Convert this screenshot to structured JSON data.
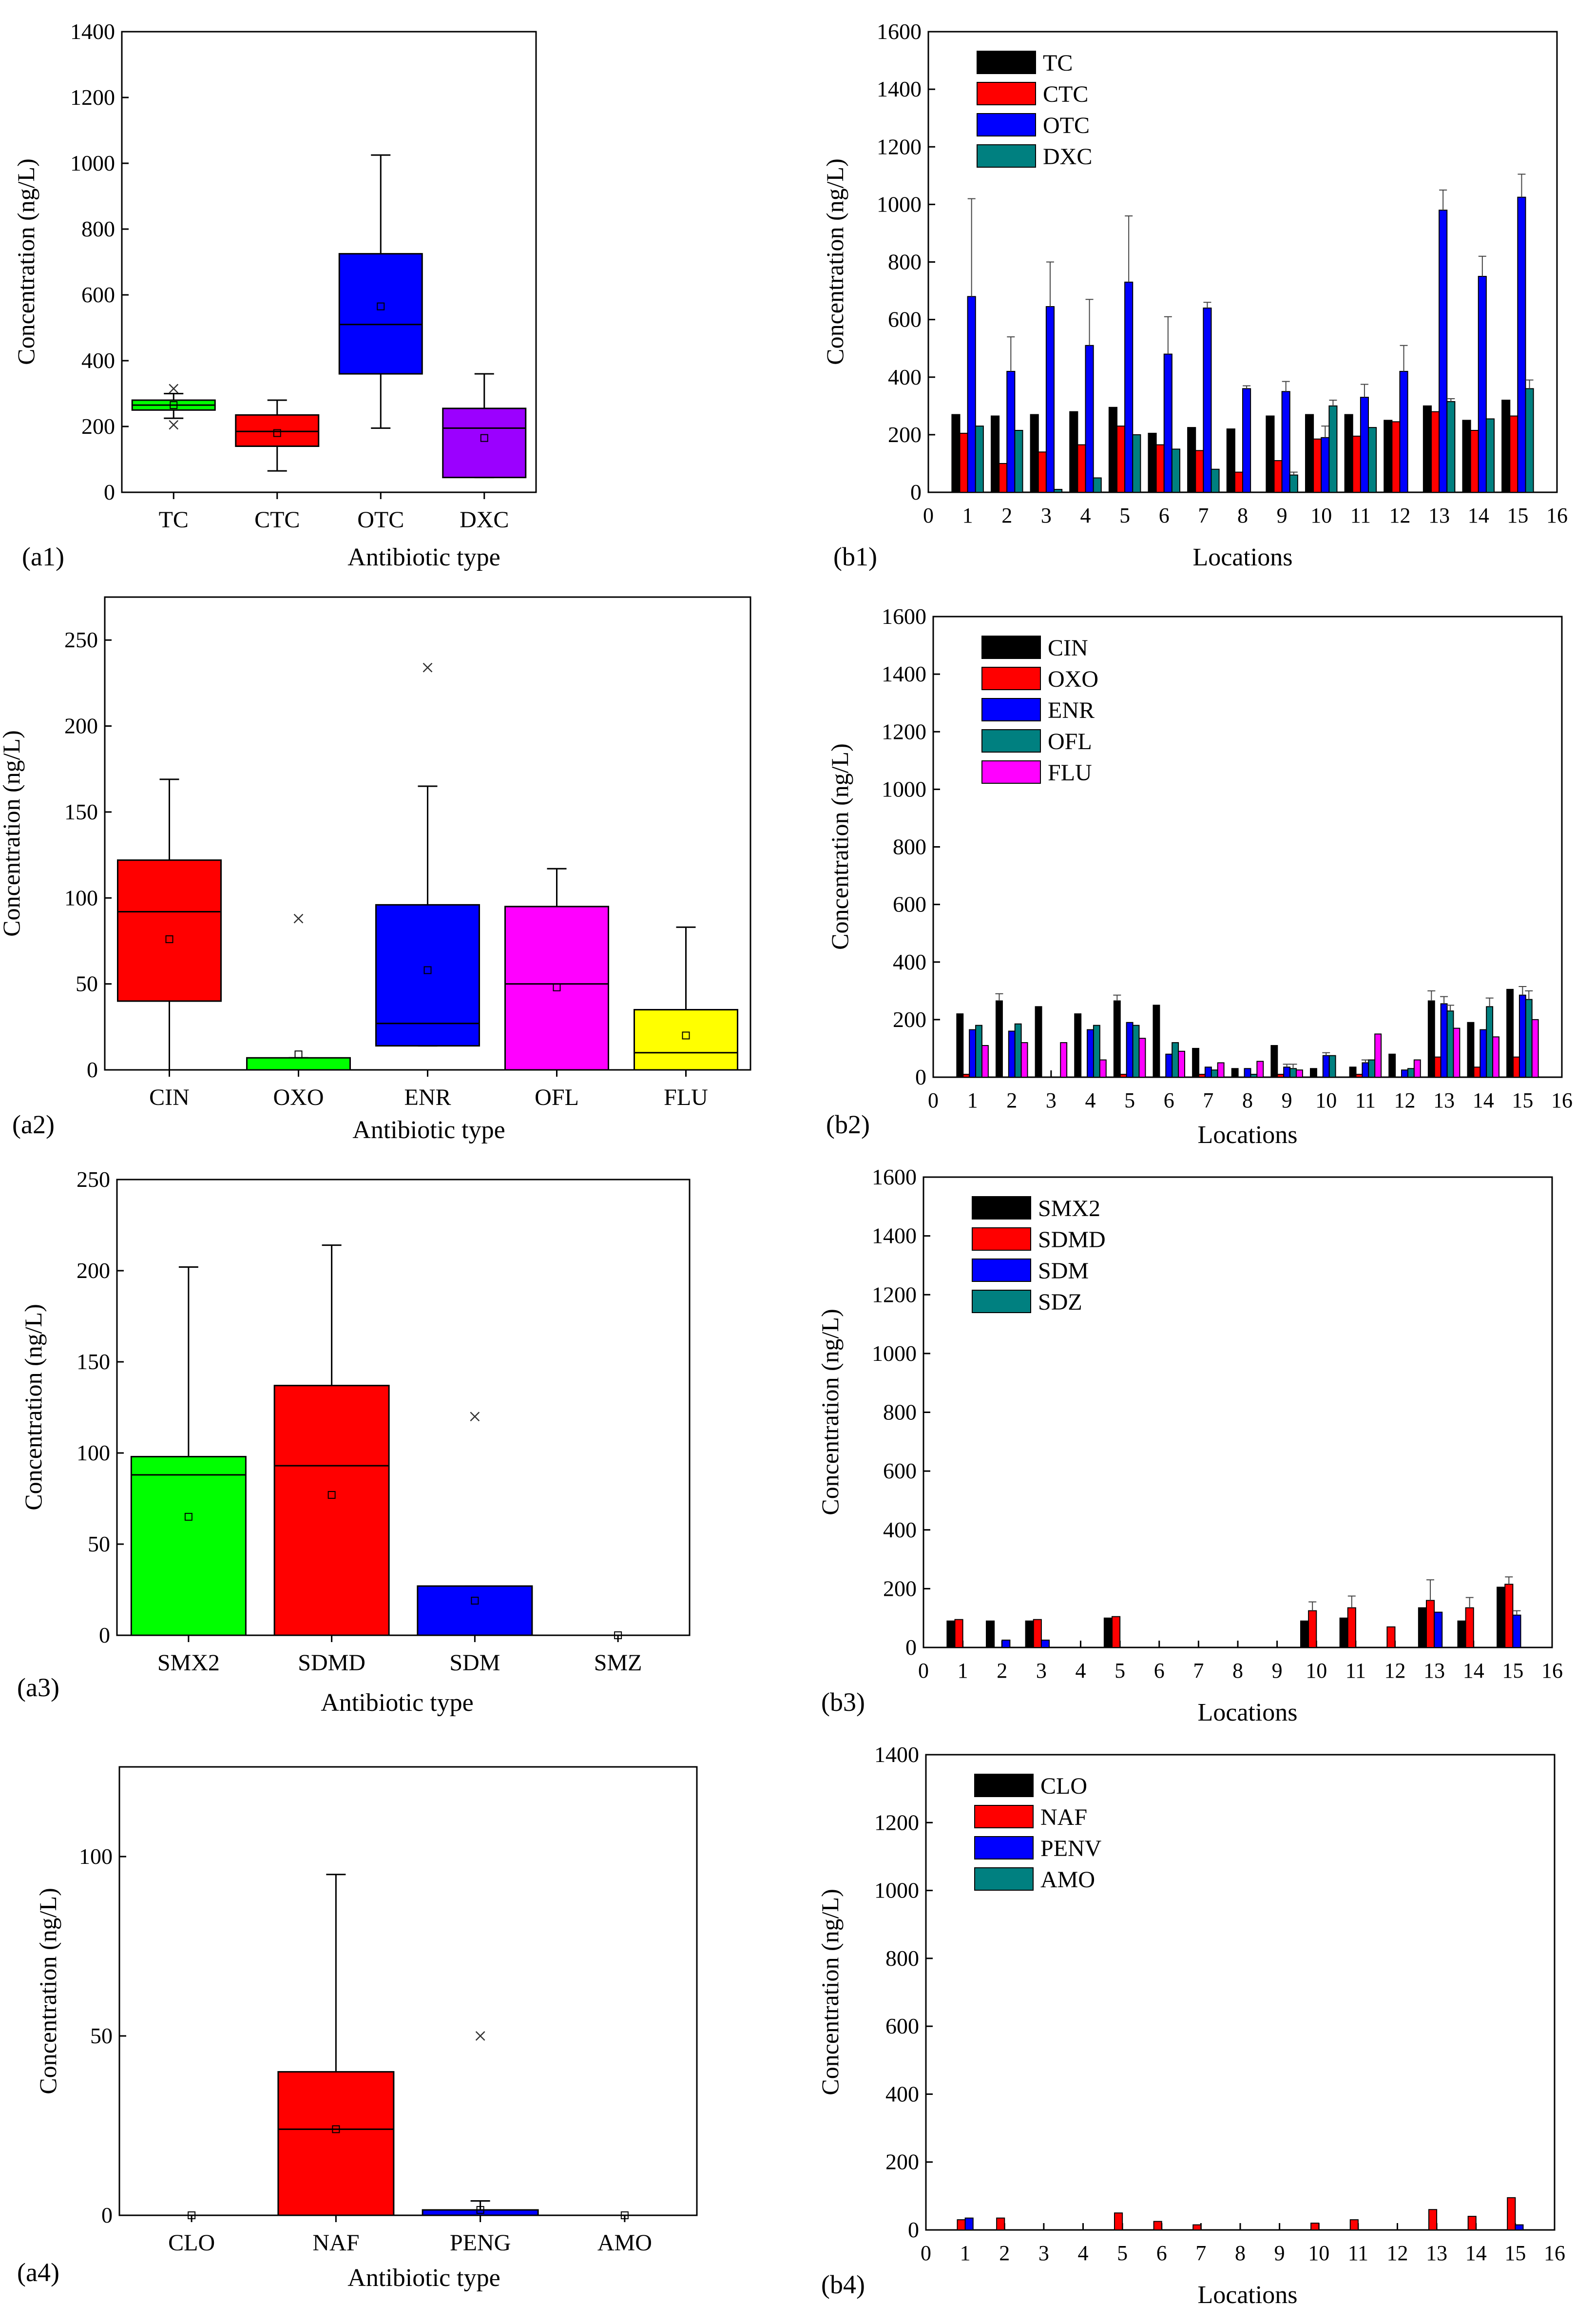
{
  "colors": {
    "green": "#00ff00",
    "red": "#ff0000",
    "blue": "#0000ff",
    "magenta": "#ff00ff",
    "yellow": "#ffff00",
    "purple": "#9b00ff",
    "teal": "#008080",
    "black": "#000000",
    "grey": "#999999"
  },
  "chart_data": [
    {
      "id": "a1",
      "type": "box",
      "panel_label": "(a1)",
      "xlabel": "Antibiotic type",
      "ylabel": "Concentration (ng/L)",
      "ylim": [
        0,
        1400
      ],
      "yticks": [
        0,
        200,
        400,
        600,
        800,
        1000,
        1200,
        1400
      ],
      "categories": [
        "TC",
        "CTC",
        "OTC",
        "DXC"
      ],
      "colors": [
        "green",
        "red",
        "blue",
        "purple"
      ],
      "boxes": [
        {
          "q1": 250,
          "median": 265,
          "q3": 280,
          "whisker_low": 225,
          "whisker_high": 300,
          "mean": 265,
          "outliers": [
            205,
            315
          ]
        },
        {
          "q1": 140,
          "median": 185,
          "q3": 235,
          "whisker_low": 65,
          "whisker_high": 280,
          "mean": 180,
          "outliers": []
        },
        {
          "q1": 360,
          "median": 510,
          "q3": 725,
          "whisker_low": 195,
          "whisker_high": 1025,
          "mean": 565,
          "outliers": []
        },
        {
          "q1": 45,
          "median": 195,
          "q3": 255,
          "whisker_low": 45,
          "whisker_high": 360,
          "mean": 165,
          "outliers": []
        }
      ]
    },
    {
      "id": "b1",
      "type": "bar",
      "panel_label": "(b1)",
      "xlabel": "Locations",
      "ylabel": "Concentration (ng/L)",
      "ylim": [
        0,
        1600
      ],
      "yticks": [
        0,
        200,
        400,
        600,
        800,
        1000,
        1200,
        1400,
        1600
      ],
      "xlim": [
        0,
        16
      ],
      "xticks": [
        0,
        1,
        2,
        3,
        4,
        5,
        6,
        7,
        8,
        9,
        10,
        11,
        12,
        13,
        14,
        15,
        16
      ],
      "categories": [
        1,
        2,
        3,
        4,
        5,
        6,
        7,
        8,
        9,
        10,
        11,
        12,
        13,
        14,
        15
      ],
      "series": [
        {
          "name": "TC",
          "color": "black",
          "values": [
            270,
            265,
            270,
            280,
            295,
            205,
            225,
            220,
            265,
            270,
            270,
            250,
            300,
            250,
            320
          ]
        },
        {
          "name": "CTC",
          "color": "red",
          "values": [
            205,
            100,
            140,
            165,
            230,
            165,
            145,
            70,
            110,
            185,
            195,
            245,
            280,
            215,
            265
          ]
        },
        {
          "name": "OTC",
          "color": "blue",
          "values": [
            680,
            420,
            645,
            510,
            730,
            480,
            640,
            360,
            350,
            190,
            330,
            420,
            980,
            750,
            1025
          ]
        },
        {
          "name": "DXC",
          "color": "teal",
          "values": [
            230,
            215,
            10,
            50,
            200,
            150,
            80,
            0,
            60,
            300,
            225,
            0,
            315,
            255,
            360
          ]
        }
      ],
      "errors": [
        [
          0,
          0,
          340,
          0
        ],
        [
          0,
          0,
          120,
          0
        ],
        [
          0,
          0,
          155,
          0
        ],
        [
          0,
          0,
          160,
          0
        ],
        [
          0,
          0,
          230,
          0
        ],
        [
          0,
          0,
          130,
          0
        ],
        [
          0,
          0,
          20,
          0
        ],
        [
          0,
          0,
          10,
          0
        ],
        [
          0,
          0,
          35,
          10
        ],
        [
          0,
          0,
          40,
          20
        ],
        [
          0,
          0,
          45,
          0
        ],
        [
          0,
          0,
          90,
          0
        ],
        [
          0,
          0,
          70,
          10
        ],
        [
          0,
          0,
          70,
          0
        ],
        [
          0,
          0,
          80,
          30
        ]
      ]
    },
    {
      "id": "a2",
      "type": "box",
      "panel_label": "(a2)",
      "xlabel": "Antibiotic type",
      "ylabel": "Concentration (ng/L)",
      "ylim": [
        0,
        275
      ],
      "yticks": [
        0,
        50,
        100,
        150,
        200,
        250
      ],
      "categories": [
        "CIN",
        "OXO",
        "ENR",
        "OFL",
        "FLU"
      ],
      "colors": [
        "red",
        "green",
        "blue",
        "magenta",
        "yellow"
      ],
      "boxes": [
        {
          "q1": 40,
          "median": 92,
          "q3": 122,
          "whisker_low": 0,
          "whisker_high": 169,
          "mean": 76,
          "outliers": []
        },
        {
          "q1": 0,
          "median": 0,
          "q3": 7,
          "whisker_low": 0,
          "whisker_high": 7,
          "mean": 9,
          "outliers": [
            88
          ]
        },
        {
          "q1": 14,
          "median": 27,
          "q3": 96,
          "whisker_low": 14,
          "whisker_high": 165,
          "mean": 58,
          "outliers": [
            234
          ]
        },
        {
          "q1": 0,
          "median": 50,
          "q3": 95,
          "whisker_low": 0,
          "whisker_high": 117,
          "mean": 48,
          "outliers": []
        },
        {
          "q1": 0,
          "median": 10,
          "q3": 35,
          "whisker_low": 0,
          "whisker_high": 83,
          "mean": 20,
          "outliers": []
        }
      ]
    },
    {
      "id": "b2",
      "type": "bar",
      "panel_label": "(b2)",
      "xlabel": "Locations",
      "ylabel": "Concentration (ng/L)",
      "ylim": [
        0,
        1600
      ],
      "yticks": [
        0,
        200,
        400,
        600,
        800,
        1000,
        1200,
        1400,
        1600
      ],
      "xlim": [
        0,
        16
      ],
      "xticks": [
        0,
        1,
        2,
        3,
        4,
        5,
        6,
        7,
        8,
        9,
        10,
        11,
        12,
        13,
        14,
        15,
        16
      ],
      "categories": [
        1,
        2,
        3,
        4,
        5,
        6,
        7,
        8,
        9,
        10,
        11,
        12,
        13,
        14,
        15
      ],
      "series": [
        {
          "name": "CIN",
          "color": "black",
          "values": [
            220,
            265,
            245,
            220,
            265,
            250,
            100,
            30,
            110,
            30,
            35,
            80,
            265,
            190,
            305
          ]
        },
        {
          "name": "OXO",
          "color": "red",
          "values": [
            10,
            0,
            0,
            0,
            10,
            0,
            10,
            0,
            10,
            0,
            10,
            0,
            70,
            35,
            70
          ]
        },
        {
          "name": "ENR",
          "color": "blue",
          "values": [
            165,
            160,
            0,
            165,
            190,
            80,
            35,
            30,
            35,
            75,
            50,
            25,
            255,
            165,
            285
          ]
        },
        {
          "name": "OFL",
          "color": "teal",
          "values": [
            180,
            185,
            0,
            180,
            180,
            120,
            25,
            10,
            30,
            75,
            60,
            30,
            230,
            245,
            270
          ]
        },
        {
          "name": "FLU",
          "color": "magenta",
          "values": [
            110,
            120,
            120,
            60,
            135,
            90,
            50,
            55,
            25,
            0,
            150,
            60,
            170,
            140,
            200
          ]
        }
      ],
      "errors": [
        [
          0,
          0,
          0,
          0,
          0
        ],
        [
          25,
          0,
          0,
          0,
          0
        ],
        [
          0,
          0,
          0,
          0,
          0
        ],
        [
          0,
          0,
          0,
          0,
          0
        ],
        [
          20,
          0,
          0,
          0,
          0
        ],
        [
          0,
          0,
          0,
          0,
          0
        ],
        [
          0,
          0,
          0,
          0,
          0
        ],
        [
          0,
          0,
          0,
          0,
          0
        ],
        [
          0,
          0,
          10,
          15,
          0
        ],
        [
          0,
          0,
          10,
          0,
          0
        ],
        [
          0,
          0,
          10,
          0,
          0
        ],
        [
          0,
          0,
          0,
          0,
          0
        ],
        [
          35,
          0,
          25,
          20,
          0
        ],
        [
          0,
          0,
          0,
          30,
          0
        ],
        [
          0,
          0,
          30,
          30,
          0
        ]
      ]
    },
    {
      "id": "a3",
      "type": "box",
      "panel_label": "(a3)",
      "xlabel": "Antibiotic type",
      "ylabel": "Concentration (ng/L)",
      "ylim": [
        0,
        250
      ],
      "yticks": [
        0,
        50,
        100,
        150,
        200,
        250
      ],
      "categories": [
        "SMX2",
        "SDMD",
        "SDM",
        "SMZ"
      ],
      "colors": [
        "green",
        "red",
        "blue",
        "grey"
      ],
      "boxes": [
        {
          "q1": 0,
          "median": 88,
          "q3": 98,
          "whisker_low": 0,
          "whisker_high": 202,
          "mean": 65,
          "outliers": []
        },
        {
          "q1": 0,
          "median": 93,
          "q3": 137,
          "whisker_low": 0,
          "whisker_high": 214,
          "mean": 77,
          "outliers": []
        },
        {
          "q1": 0,
          "median": 0,
          "q3": 27,
          "whisker_low": 0,
          "whisker_high": 27,
          "mean": 19,
          "outliers": [
            120
          ]
        },
        {
          "q1": 0,
          "median": 0,
          "q3": 0,
          "whisker_low": 0,
          "whisker_high": 0,
          "mean": 0,
          "outliers": []
        }
      ]
    },
    {
      "id": "b3",
      "type": "bar",
      "panel_label": "(b3)",
      "xlabel": "Locations",
      "ylabel": "Concentration (ng/L)",
      "ylim": [
        0,
        1600
      ],
      "yticks": [
        0,
        200,
        400,
        600,
        800,
        1000,
        1200,
        1400,
        1600
      ],
      "xlim": [
        0,
        16
      ],
      "xticks": [
        0,
        1,
        2,
        3,
        4,
        5,
        6,
        7,
        8,
        9,
        10,
        11,
        12,
        13,
        14,
        15,
        16
      ],
      "categories": [
        1,
        2,
        3,
        4,
        5,
        6,
        7,
        8,
        9,
        10,
        11,
        12,
        13,
        14,
        15
      ],
      "series": [
        {
          "name": "SMX2",
          "color": "black",
          "values": [
            90,
            90,
            90,
            0,
            100,
            0,
            0,
            0,
            0,
            90,
            100,
            0,
            135,
            90,
            205
          ]
        },
        {
          "name": "SDMD",
          "color": "red",
          "values": [
            95,
            0,
            95,
            0,
            105,
            0,
            0,
            0,
            0,
            125,
            135,
            70,
            160,
            135,
            215
          ]
        },
        {
          "name": "SDM",
          "color": "blue",
          "values": [
            0,
            25,
            25,
            0,
            0,
            0,
            0,
            0,
            0,
            0,
            0,
            0,
            120,
            0,
            110
          ]
        },
        {
          "name": "SDZ",
          "color": "teal",
          "values": [
            0,
            0,
            0,
            0,
            0,
            0,
            0,
            0,
            0,
            0,
            0,
            0,
            0,
            0,
            0
          ]
        }
      ],
      "errors": [
        [
          0,
          0,
          0,
          0
        ],
        [
          0,
          0,
          0,
          0
        ],
        [
          0,
          0,
          0,
          0
        ],
        [
          0,
          0,
          0,
          0
        ],
        [
          0,
          0,
          0,
          0
        ],
        [
          0,
          0,
          0,
          0
        ],
        [
          0,
          0,
          0,
          0
        ],
        [
          0,
          0,
          0,
          0
        ],
        [
          0,
          0,
          0,
          0
        ],
        [
          0,
          30,
          0,
          0
        ],
        [
          0,
          40,
          0,
          0
        ],
        [
          0,
          0,
          0,
          0
        ],
        [
          0,
          70,
          0,
          0
        ],
        [
          0,
          35,
          0,
          0
        ],
        [
          0,
          25,
          15,
          0
        ]
      ]
    },
    {
      "id": "a4",
      "type": "box",
      "panel_label": "(a4)",
      "xlabel": "Antibiotic type",
      "ylabel": "Concentration (ng/L)",
      "ylim": [
        0,
        125
      ],
      "yticks": [
        0,
        50,
        100
      ],
      "categories": [
        "CLO",
        "NAF",
        "PENG",
        "AMO"
      ],
      "colors": [
        "grey",
        "red",
        "blue",
        "grey"
      ],
      "boxes": [
        {
          "q1": 0,
          "median": 0,
          "q3": 0,
          "whisker_low": 0,
          "whisker_high": 0,
          "mean": 0,
          "outliers": []
        },
        {
          "q1": 0,
          "median": 24,
          "q3": 40,
          "whisker_low": 0,
          "whisker_high": 95,
          "mean": 24,
          "outliers": []
        },
        {
          "q1": 0,
          "median": 0,
          "q3": 1.5,
          "whisker_low": 0,
          "whisker_high": 4,
          "mean": 1.5,
          "outliers": [
            50
          ]
        },
        {
          "q1": 0,
          "median": 0,
          "q3": 0,
          "whisker_low": 0,
          "whisker_high": 0,
          "mean": 0,
          "outliers": []
        }
      ]
    },
    {
      "id": "b4",
      "type": "bar",
      "panel_label": "(b4)",
      "xlabel": "Locations",
      "ylabel": "Concentration (ng/L)",
      "ylim": [
        0,
        1400
      ],
      "yticks": [
        0,
        200,
        400,
        600,
        800,
        1000,
        1200,
        1400
      ],
      "xlim": [
        0,
        16
      ],
      "xticks": [
        0,
        1,
        2,
        3,
        4,
        5,
        6,
        7,
        8,
        9,
        10,
        11,
        12,
        13,
        14,
        15,
        16
      ],
      "categories": [
        1,
        2,
        3,
        4,
        5,
        6,
        7,
        8,
        9,
        10,
        11,
        12,
        13,
        14,
        15
      ],
      "series": [
        {
          "name": "CLO",
          "color": "black",
          "values": [
            0,
            0,
            0,
            0,
            0,
            0,
            0,
            0,
            0,
            0,
            0,
            0,
            0,
            0,
            0
          ]
        },
        {
          "name": "NAF",
          "color": "red",
          "values": [
            30,
            35,
            0,
            0,
            50,
            25,
            15,
            0,
            0,
            20,
            30,
            0,
            60,
            40,
            95
          ]
        },
        {
          "name": "PENV",
          "color": "blue",
          "values": [
            35,
            0,
            0,
            0,
            0,
            0,
            0,
            0,
            0,
            0,
            0,
            0,
            0,
            0,
            15
          ]
        },
        {
          "name": "AMO",
          "color": "teal",
          "values": [
            0,
            0,
            0,
            0,
            0,
            0,
            0,
            0,
            0,
            0,
            0,
            0,
            0,
            0,
            0
          ]
        }
      ],
      "errors": [
        [
          0,
          0,
          0,
          0
        ],
        [
          0,
          0,
          0,
          0
        ],
        [
          0,
          0,
          0,
          0
        ],
        [
          0,
          0,
          0,
          0
        ],
        [
          0,
          0,
          0,
          0
        ],
        [
          0,
          0,
          0,
          0
        ],
        [
          0,
          0,
          0,
          0
        ],
        [
          0,
          0,
          0,
          0
        ],
        [
          0,
          0,
          0,
          0
        ],
        [
          0,
          0,
          0,
          0
        ],
        [
          0,
          0,
          0,
          0
        ],
        [
          0,
          0,
          0,
          0
        ],
        [
          0,
          0,
          0,
          0
        ],
        [
          0,
          0,
          0,
          0
        ],
        [
          0,
          0,
          0,
          0
        ]
      ]
    }
  ]
}
